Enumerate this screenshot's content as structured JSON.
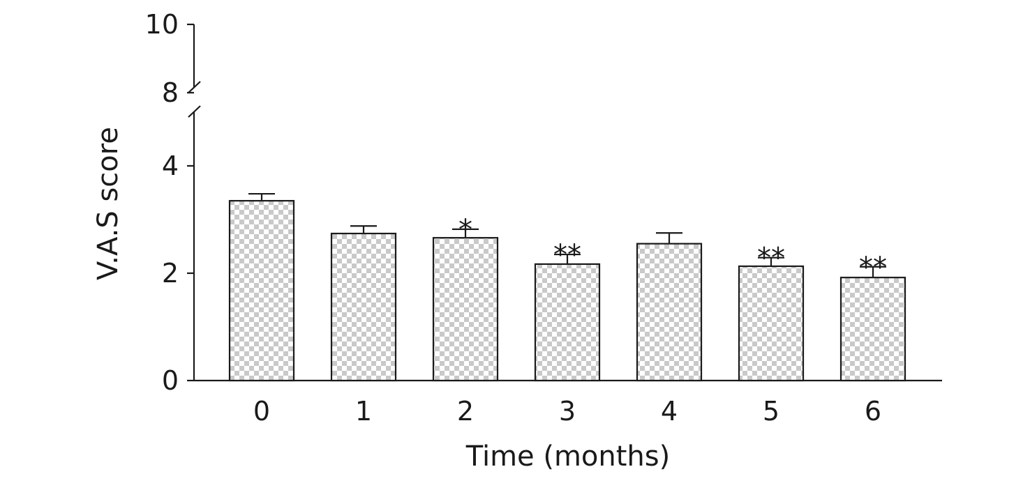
{
  "chart_data": {
    "type": "bar",
    "categories": [
      "0",
      "1",
      "2",
      "3",
      "4",
      "5",
      "6"
    ],
    "values": [
      3.35,
      2.74,
      2.66,
      2.17,
      2.55,
      2.13,
      1.92
    ],
    "errors": [
      0.13,
      0.14,
      0.16,
      0.18,
      0.2,
      0.16,
      0.2
    ],
    "significance": [
      "",
      "",
      "*",
      "**",
      "",
      "**",
      "**"
    ],
    "xlabel": "Time (months)",
    "ylabel": "V.A.S score",
    "ylim": [
      0,
      10
    ],
    "y_axis_break": [
      5,
      8
    ],
    "yticks": [
      0,
      2,
      4,
      8,
      10
    ],
    "grid": false,
    "colors": {
      "axis": "#1a1a1a",
      "bar_pattern_light": "#ffffff",
      "bar_pattern_dark": "#c9c9c9"
    }
  }
}
